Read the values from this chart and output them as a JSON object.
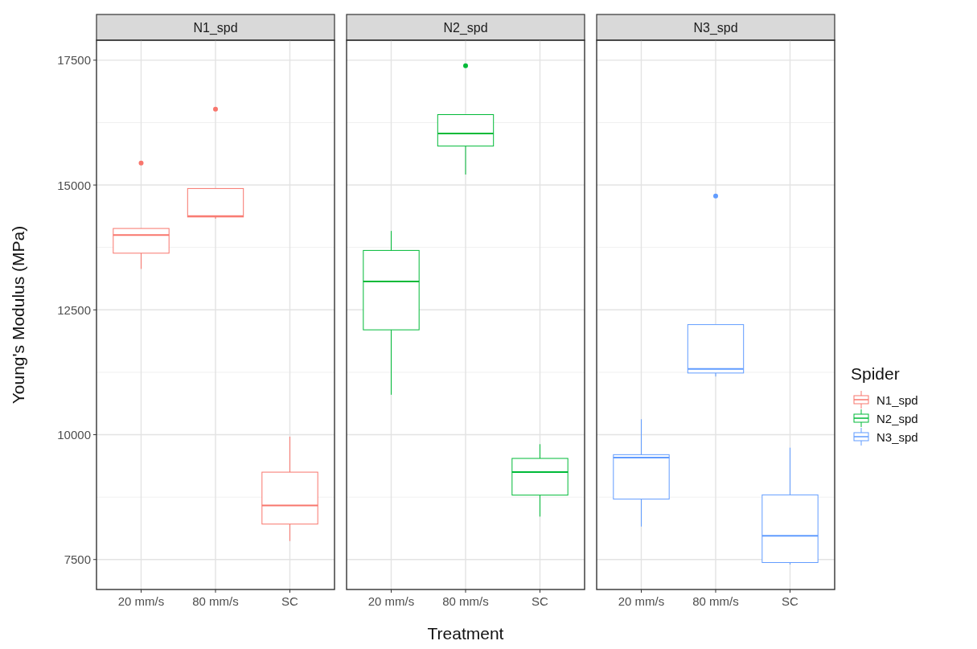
{
  "chart_data": [
    {
      "type": "box",
      "title": "N1_spd",
      "ylabel": "Young's Modulus (MPa)",
      "categories": [
        "20 mm/s",
        "80 mm/s",
        "SC"
      ],
      "ylim": [
        6900,
        17900
      ],
      "yticks": [
        7500,
        10000,
        12500,
        15000,
        17500
      ],
      "grid": true,
      "series": [
        {
          "name": "N1_spd",
          "color": "#f8766d",
          "boxes": [
            {
              "low": 13320,
              "q1": 13635,
              "median": 14000,
              "q3": 14130,
              "high": 14130,
              "outliers": [
                15440
              ]
            },
            {
              "low": 14325,
              "q1": 14360,
              "median": 14375,
              "q3": 14930,
              "high": 14930,
              "outliers": [
                16520
              ]
            },
            {
              "low": 7870,
              "q1": 8210,
              "median": 8585,
              "q3": 9250,
              "high": 9960
            }
          ]
        }
      ]
    },
    {
      "type": "box",
      "title": "N2_spd",
      "xlabel": "Treatment",
      "categories": [
        "20 mm/s",
        "80 mm/s",
        "SC"
      ],
      "ylim": [
        6900,
        17900
      ],
      "yticks": [
        7500,
        10000,
        12500,
        15000,
        17500
      ],
      "grid": true,
      "tick_labels": "x",
      "series": [
        {
          "name": "N2_spd",
          "color": "#00ba38",
          "boxes": [
            {
              "low": 10800,
              "q1": 12100,
              "median": 13070,
              "q3": 13690,
              "high": 14080
            },
            {
              "low": 15210,
              "q1": 15780,
              "median": 16030,
              "q3": 16410,
              "high": 16410,
              "outliers": [
                17390
              ]
            },
            {
              "low": 8360,
              "q1": 8790,
              "median": 9250,
              "q3": 9525,
              "high": 9810
            }
          ]
        }
      ]
    },
    {
      "type": "box",
      "title": "N3_spd",
      "legend_title": "Spider",
      "legend": "right",
      "categories": [
        "20 mm/s",
        "80 mm/s",
        "SC"
      ],
      "ylim": [
        6900,
        17900
      ],
      "yticks": [
        7500,
        10000,
        12500,
        15000,
        17500
      ],
      "grid": true,
      "tick_labels": "x",
      "series": [
        {
          "name": "N3_spd",
          "color": "#619cff",
          "boxes": [
            {
              "low": 8160,
              "q1": 8710,
              "median": 9540,
              "q3": 9600,
              "high": 10310
            },
            {
              "low": 11165,
              "q1": 11235,
              "median": 11315,
              "q3": 12205,
              "high": 12205,
              "outliers": [
                14780
              ]
            },
            {
              "low": 7400,
              "q1": 7440,
              "median": 7975,
              "q3": 8795,
              "high": 9740
            }
          ]
        }
      ]
    }
  ]
}
